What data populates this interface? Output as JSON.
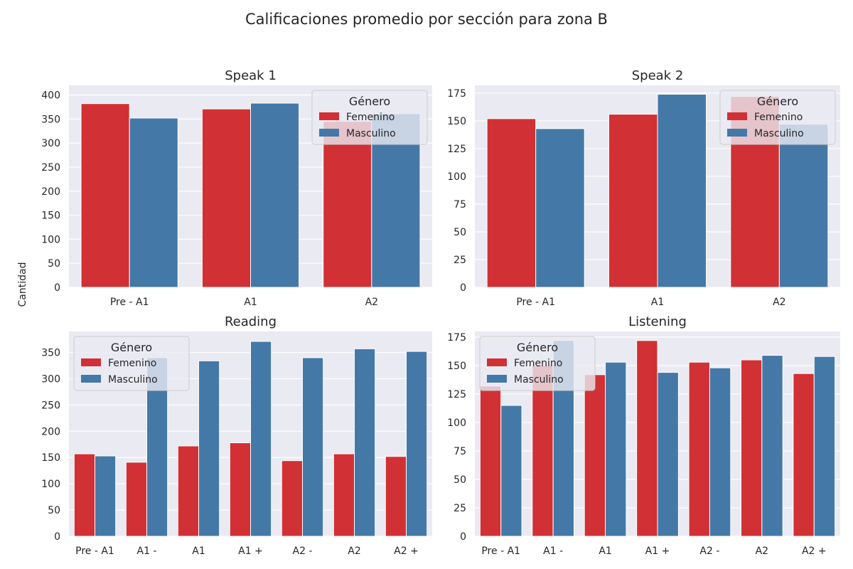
{
  "figure": {
    "suptitle": "Calificaciones promedio por sección para zona B",
    "ylabel": "Cantidad"
  },
  "colors": {
    "plot_bg": "#EAEAF2",
    "grid": "#FFFFFF",
    "femenino": "#D13134",
    "masculino": "#4479A7",
    "text": "#262626"
  },
  "chart_data": [
    {
      "type": "bar",
      "title": "Speak 1",
      "categories": [
        "Pre - A1",
        "A1",
        "A2"
      ],
      "series": [
        {
          "name": "Femenino",
          "values": [
            382,
            371,
            345
          ]
        },
        {
          "name": "Masculino",
          "values": [
            352,
            383,
            361
          ]
        }
      ],
      "ylim": [
        0,
        420
      ],
      "yticks": [
        0,
        50,
        100,
        150,
        200,
        250,
        300,
        350,
        400
      ],
      "legend": {
        "title": "Género",
        "position": "top-right"
      },
      "grid": true
    },
    {
      "type": "bar",
      "title": "Speak 2",
      "categories": [
        "Pre - A1",
        "A1",
        "A2"
      ],
      "series": [
        {
          "name": "Femenino",
          "values": [
            152,
            156,
            172
          ]
        },
        {
          "name": "Masculino",
          "values": [
            143,
            174,
            147
          ]
        }
      ],
      "ylim": [
        0,
        182
      ],
      "yticks": [
        0,
        25,
        50,
        75,
        100,
        125,
        150,
        175
      ],
      "legend": {
        "title": "Género",
        "position": "top-right"
      },
      "grid": true
    },
    {
      "type": "bar",
      "title": "Reading",
      "categories": [
        "Pre - A1",
        "A1 -",
        "A1",
        "A1 +",
        "A2 -",
        "A2",
        "A2 +"
      ],
      "series": [
        {
          "name": "Femenino",
          "values": [
            157,
            141,
            172,
            178,
            144,
            157,
            152
          ]
        },
        {
          "name": "Masculino",
          "values": [
            153,
            340,
            334,
            371,
            340,
            357,
            352
          ]
        }
      ],
      "ylim": [
        0,
        390
      ],
      "yticks": [
        0,
        50,
        100,
        150,
        200,
        250,
        300,
        350
      ],
      "legend": {
        "title": "Género",
        "position": "top-left"
      },
      "grid": true
    },
    {
      "type": "bar",
      "title": "Listening",
      "categories": [
        "Pre - A1",
        "A1 -",
        "A1",
        "A1 +",
        "A2 -",
        "A2",
        "A2 +"
      ],
      "series": [
        {
          "name": "Femenino",
          "values": [
            132,
            150,
            142,
            172,
            153,
            155,
            143
          ]
        },
        {
          "name": "Masculino",
          "values": [
            115,
            172,
            153,
            144,
            148,
            159,
            158
          ]
        }
      ],
      "ylim": [
        0,
        180
      ],
      "yticks": [
        0,
        25,
        50,
        75,
        100,
        125,
        150,
        175
      ],
      "legend": {
        "title": "Género",
        "position": "top-left"
      },
      "grid": true
    }
  ]
}
